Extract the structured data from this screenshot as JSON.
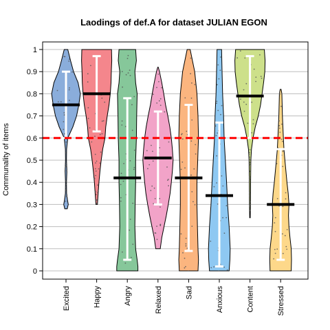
{
  "chart_data": {
    "type": "violin",
    "title": "Laodings of def.A for dataset JULIAN EGON",
    "xlabel": "",
    "ylabel": "Communality of items",
    "ylim": [
      0,
      1
    ],
    "yticks": [
      "0",
      "0.1",
      "0.2",
      "0.3",
      "0.4",
      "0.5",
      "0.6",
      "0.7",
      "0.8",
      "0.9",
      "1"
    ],
    "threshold": 0.6,
    "threshold_color": "#ff0000",
    "grid": "horizontal",
    "legend": "none",
    "categories": [
      "Excited",
      "Happy",
      "Angry",
      "Relaxed",
      "Sad",
      "Anxious",
      "Content",
      "Stressed"
    ],
    "series": [
      {
        "category": "Excited",
        "color": "#8aaddb",
        "mean": 0.75,
        "ci": [
          0.6,
          0.9
        ],
        "range": [
          0.28,
          1.0
        ],
        "density": [
          [
            0.28,
            0.08
          ],
          [
            0.3,
            0.15
          ],
          [
            0.32,
            0.1
          ],
          [
            0.35,
            0.04
          ],
          [
            0.4,
            0.03
          ],
          [
            0.45,
            0.06
          ],
          [
            0.5,
            0.03
          ],
          [
            0.55,
            0.04
          ],
          [
            0.6,
            0.12
          ],
          [
            0.65,
            0.45
          ],
          [
            0.7,
            0.7
          ],
          [
            0.75,
            0.85
          ],
          [
            0.8,
            0.95
          ],
          [
            0.85,
            0.8
          ],
          [
            0.9,
            0.5
          ],
          [
            0.95,
            0.3
          ],
          [
            1.0,
            0.12
          ]
        ]
      },
      {
        "category": "Happy",
        "color": "#f4868c",
        "mean": 0.8,
        "ci": [
          0.63,
          0.97
        ],
        "range": [
          0.3,
          1.0
        ],
        "density": [
          [
            0.3,
            0.05
          ],
          [
            0.35,
            0.1
          ],
          [
            0.4,
            0.15
          ],
          [
            0.45,
            0.22
          ],
          [
            0.5,
            0.3
          ],
          [
            0.55,
            0.4
          ],
          [
            0.6,
            0.55
          ],
          [
            0.65,
            0.6
          ],
          [
            0.7,
            0.7
          ],
          [
            0.75,
            0.82
          ],
          [
            0.8,
            0.9
          ],
          [
            0.85,
            0.95
          ],
          [
            0.9,
            0.97
          ],
          [
            0.95,
            1.0
          ],
          [
            1.0,
            0.98
          ]
        ]
      },
      {
        "category": "Angry",
        "color": "#86c79a",
        "mean": 0.42,
        "ci": [
          0.05,
          0.78
        ],
        "range": [
          0.0,
          1.0
        ],
        "density": [
          [
            0.0,
            0.7
          ],
          [
            0.02,
            0.7
          ],
          [
            0.05,
            0.65
          ],
          [
            0.1,
            0.55
          ],
          [
            0.2,
            0.5
          ],
          [
            0.3,
            0.52
          ],
          [
            0.4,
            0.55
          ],
          [
            0.5,
            0.55
          ],
          [
            0.6,
            0.6
          ],
          [
            0.7,
            0.62
          ],
          [
            0.8,
            0.65
          ],
          [
            0.85,
            0.55
          ],
          [
            0.9,
            0.5
          ],
          [
            0.95,
            0.6
          ],
          [
            1.0,
            0.55
          ]
        ]
      },
      {
        "category": "Relaxed",
        "color": "#f2a3c8",
        "mean": 0.51,
        "ci": [
          0.3,
          0.72
        ],
        "range": [
          0.1,
          0.92
        ],
        "density": [
          [
            0.1,
            0.15
          ],
          [
            0.15,
            0.25
          ],
          [
            0.2,
            0.4
          ],
          [
            0.25,
            0.55
          ],
          [
            0.3,
            0.68
          ],
          [
            0.35,
            0.8
          ],
          [
            0.4,
            0.88
          ],
          [
            0.45,
            0.95
          ],
          [
            0.5,
            1.0
          ],
          [
            0.55,
            0.95
          ],
          [
            0.6,
            0.88
          ],
          [
            0.65,
            0.78
          ],
          [
            0.7,
            0.65
          ],
          [
            0.75,
            0.5
          ],
          [
            0.8,
            0.38
          ],
          [
            0.85,
            0.25
          ],
          [
            0.9,
            0.1
          ],
          [
            0.92,
            0.02
          ]
        ]
      },
      {
        "category": "Sad",
        "color": "#fbb57f",
        "mean": 0.42,
        "ci": [
          0.09,
          0.75
        ],
        "range": [
          0.0,
          1.0
        ],
        "density": [
          [
            0.0,
            0.62
          ],
          [
            0.05,
            0.65
          ],
          [
            0.1,
            0.62
          ],
          [
            0.2,
            0.58
          ],
          [
            0.3,
            0.55
          ],
          [
            0.4,
            0.55
          ],
          [
            0.5,
            0.6
          ],
          [
            0.6,
            0.65
          ],
          [
            0.7,
            0.62
          ],
          [
            0.8,
            0.55
          ],
          [
            0.9,
            0.4
          ],
          [
            0.95,
            0.25
          ],
          [
            1.0,
            0.1
          ]
        ]
      },
      {
        "category": "Anxious",
        "color": "#8ec8f2",
        "mean": 0.34,
        "ci": [
          0.02,
          0.67
        ],
        "range": [
          0.0,
          1.0
        ],
        "density": [
          [
            0.0,
            0.65
          ],
          [
            0.05,
            0.7
          ],
          [
            0.1,
            0.72
          ],
          [
            0.2,
            0.65
          ],
          [
            0.3,
            0.55
          ],
          [
            0.4,
            0.48
          ],
          [
            0.5,
            0.4
          ],
          [
            0.6,
            0.32
          ],
          [
            0.7,
            0.28
          ],
          [
            0.8,
            0.22
          ],
          [
            0.9,
            0.18
          ],
          [
            1.0,
            0.15
          ]
        ]
      },
      {
        "category": "Content",
        "color": "#cde08a",
        "mean": 0.79,
        "ci": [
          0.6,
          0.97
        ],
        "range": [
          0.24,
          1.0
        ],
        "density": [
          [
            0.24,
            0.02
          ],
          [
            0.3,
            0.03
          ],
          [
            0.4,
            0.04
          ],
          [
            0.5,
            0.06
          ],
          [
            0.55,
            0.1
          ],
          [
            0.6,
            0.2
          ],
          [
            0.65,
            0.35
          ],
          [
            0.7,
            0.55
          ],
          [
            0.75,
            0.7
          ],
          [
            0.8,
            0.8
          ],
          [
            0.85,
            0.9
          ],
          [
            0.9,
            0.98
          ],
          [
            0.95,
            1.0
          ],
          [
            1.0,
            0.95
          ]
        ]
      },
      {
        "category": "Stressed",
        "color": "#fdd88a",
        "mean": 0.3,
        "ci": [
          0.05,
          0.55
        ],
        "range": [
          0.0,
          0.82
        ],
        "density": [
          [
            0.0,
            0.7
          ],
          [
            0.05,
            0.72
          ],
          [
            0.1,
            0.7
          ],
          [
            0.15,
            0.62
          ],
          [
            0.2,
            0.55
          ],
          [
            0.25,
            0.52
          ],
          [
            0.3,
            0.55
          ],
          [
            0.35,
            0.5
          ],
          [
            0.4,
            0.42
          ],
          [
            0.45,
            0.35
          ],
          [
            0.5,
            0.28
          ],
          [
            0.55,
            0.22
          ],
          [
            0.6,
            0.18
          ],
          [
            0.7,
            0.12
          ],
          [
            0.8,
            0.08
          ],
          [
            0.82,
            0.03
          ]
        ]
      }
    ]
  }
}
